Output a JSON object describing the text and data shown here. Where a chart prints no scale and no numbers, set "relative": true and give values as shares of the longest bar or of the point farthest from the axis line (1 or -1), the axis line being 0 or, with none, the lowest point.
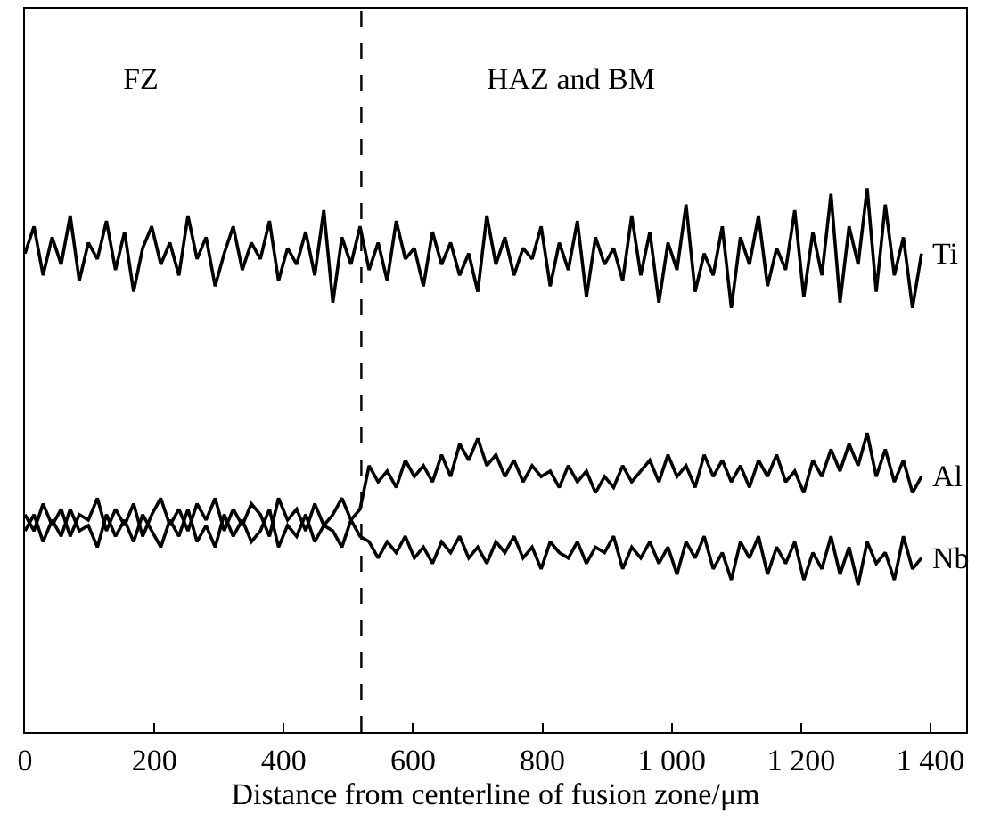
{
  "chart_data": {
    "type": "line",
    "relative": true,
    "xlabel": "Distance from centerline of fusion zone/μm",
    "annotations": [
      "FZ",
      "HAZ and BM"
    ],
    "x": [
      0,
      14,
      28,
      42,
      56,
      70,
      84,
      98,
      112,
      126,
      140,
      154,
      168,
      182,
      196,
      210,
      224,
      238,
      252,
      266,
      280,
      294,
      308,
      322,
      336,
      350,
      364,
      378,
      392,
      406,
      420,
      434,
      448,
      462,
      476,
      490,
      504,
      518,
      532,
      546,
      560,
      574,
      588,
      602,
      616,
      630,
      644,
      658,
      672,
      686,
      700,
      714,
      728,
      742,
      756,
      770,
      784,
      798,
      812,
      826,
      840,
      854,
      868,
      882,
      896,
      910,
      924,
      938,
      952,
      966,
      980,
      994,
      1008,
      1022,
      1036,
      1050,
      1064,
      1078,
      1092,
      1106,
      1120,
      1134,
      1148,
      1162,
      1176,
      1190,
      1204,
      1218,
      1232,
      1246,
      1260,
      1274,
      1288,
      1302,
      1316,
      1330,
      1344,
      1358,
      1372,
      1386
    ],
    "series": [
      {
        "name": "Ti",
        "color": "#000000",
        "values": [
          0.88,
          0.93,
          0.84,
          0.91,
          0.86,
          0.95,
          0.83,
          0.9,
          0.87,
          0.94,
          0.85,
          0.92,
          0.81,
          0.89,
          0.93,
          0.86,
          0.9,
          0.84,
          0.95,
          0.87,
          0.91,
          0.82,
          0.88,
          0.93,
          0.85,
          0.9,
          0.87,
          0.94,
          0.83,
          0.89,
          0.86,
          0.92,
          0.84,
          0.96,
          0.79,
          0.91,
          0.86,
          0.93,
          0.85,
          0.9,
          0.83,
          0.94,
          0.87,
          0.89,
          0.82,
          0.92,
          0.86,
          0.9,
          0.84,
          0.88,
          0.81,
          0.95,
          0.86,
          0.91,
          0.84,
          0.89,
          0.87,
          0.93,
          0.82,
          0.9,
          0.85,
          0.94,
          0.8,
          0.91,
          0.86,
          0.89,
          0.83,
          0.95,
          0.84,
          0.92,
          0.79,
          0.9,
          0.85,
          0.97,
          0.81,
          0.88,
          0.84,
          0.93,
          0.78,
          0.91,
          0.86,
          0.95,
          0.82,
          0.89,
          0.85,
          0.96,
          0.8,
          0.92,
          0.84,
          0.99,
          0.79,
          0.93,
          0.86,
          1.0,
          0.81,
          0.97,
          0.84,
          0.91,
          0.78,
          0.88
        ]
      },
      {
        "name": "Al",
        "color": "#000000",
        "values": [
          0.4,
          0.37,
          0.42,
          0.38,
          0.41,
          0.36,
          0.4,
          0.39,
          0.43,
          0.37,
          0.41,
          0.38,
          0.42,
          0.36,
          0.4,
          0.43,
          0.38,
          0.41,
          0.37,
          0.42,
          0.39,
          0.43,
          0.37,
          0.41,
          0.38,
          0.42,
          0.4,
          0.36,
          0.43,
          0.39,
          0.41,
          0.37,
          0.42,
          0.38,
          0.4,
          0.43,
          0.39,
          0.41,
          0.49,
          0.46,
          0.48,
          0.45,
          0.5,
          0.47,
          0.49,
          0.46,
          0.51,
          0.47,
          0.53,
          0.5,
          0.54,
          0.49,
          0.51,
          0.47,
          0.5,
          0.46,
          0.49,
          0.47,
          0.48,
          0.45,
          0.49,
          0.46,
          0.48,
          0.44,
          0.47,
          0.45,
          0.49,
          0.46,
          0.48,
          0.5,
          0.46,
          0.51,
          0.47,
          0.49,
          0.45,
          0.51,
          0.47,
          0.5,
          0.46,
          0.49,
          0.45,
          0.5,
          0.47,
          0.51,
          0.46,
          0.48,
          0.44,
          0.5,
          0.47,
          0.52,
          0.48,
          0.53,
          0.49,
          0.55,
          0.47,
          0.52,
          0.46,
          0.5,
          0.44,
          0.47
        ]
      },
      {
        "name": "Nb",
        "color": "#000000",
        "values": [
          0.37,
          0.4,
          0.35,
          0.39,
          0.36,
          0.41,
          0.37,
          0.38,
          0.34,
          0.4,
          0.36,
          0.39,
          0.35,
          0.4,
          0.37,
          0.34,
          0.39,
          0.36,
          0.41,
          0.35,
          0.38,
          0.34,
          0.4,
          0.36,
          0.39,
          0.35,
          0.37,
          0.41,
          0.34,
          0.38,
          0.36,
          0.4,
          0.35,
          0.38,
          0.37,
          0.34,
          0.39,
          0.36,
          0.35,
          0.32,
          0.35,
          0.33,
          0.36,
          0.32,
          0.34,
          0.31,
          0.35,
          0.33,
          0.36,
          0.32,
          0.34,
          0.31,
          0.35,
          0.33,
          0.36,
          0.32,
          0.34,
          0.3,
          0.35,
          0.33,
          0.32,
          0.35,
          0.31,
          0.34,
          0.33,
          0.36,
          0.3,
          0.34,
          0.32,
          0.35,
          0.31,
          0.34,
          0.29,
          0.35,
          0.32,
          0.36,
          0.3,
          0.33,
          0.28,
          0.35,
          0.32,
          0.36,
          0.29,
          0.34,
          0.31,
          0.35,
          0.28,
          0.33,
          0.3,
          0.36,
          0.29,
          0.34,
          0.27,
          0.35,
          0.31,
          0.33,
          0.28,
          0.36,
          0.3,
          0.32
        ]
      }
    ],
    "xlim": [
      0,
      1455
    ],
    "xticks": [
      0,
      200,
      400,
      600,
      800,
      {
        "value": 1000,
        "label": "1 000"
      },
      {
        "value": 1200,
        "label": "1 200"
      },
      {
        "value": 1400,
        "label": "1 400"
      }
    ],
    "ref_lines": [
      {
        "axis": "x",
        "value": 520,
        "color": "#000000",
        "line_style": "dashed"
      }
    ],
    "tick_labels": "x",
    "legend": false,
    "marker": "none",
    "line_style": "solid"
  }
}
